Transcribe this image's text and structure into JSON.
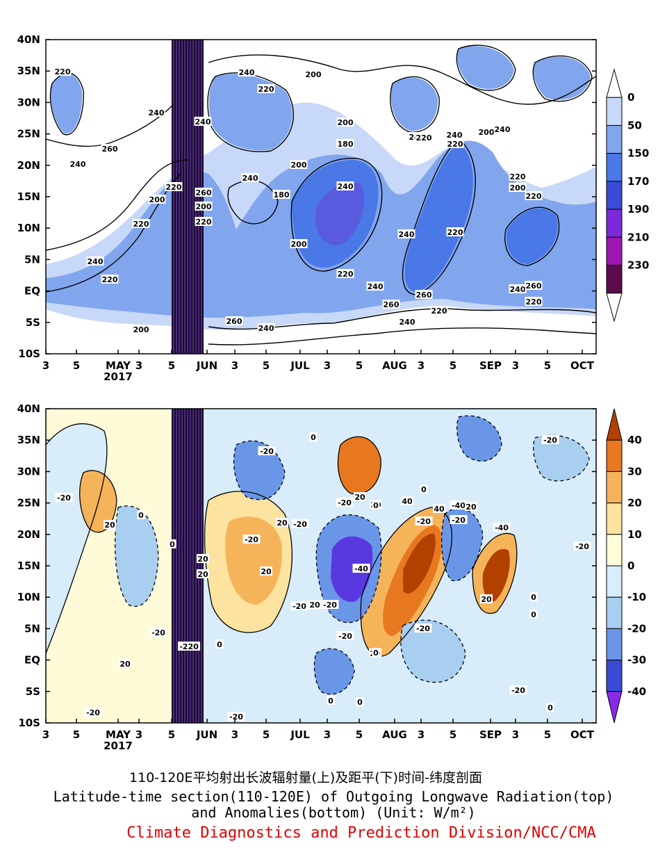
{
  "chart_data": [
    {
      "type": "heatmap",
      "title": "Outgoing Longwave Radiation (top)",
      "y_ticks": [
        "40N",
        "35N",
        "30N",
        "25N",
        "20N",
        "15N",
        "10N",
        "5N",
        "EQ",
        "5S",
        "10S"
      ],
      "x_ticks": [
        "3",
        "5",
        "MAY",
        "3",
        "5",
        "JUN",
        "3",
        "5",
        "JUL",
        "3",
        "5",
        "AUG",
        "3",
        "5",
        "SEP",
        "3",
        "5",
        "OCT"
      ],
      "year_label": "2017",
      "colorbar": {
        "levels": [
          "0",
          "50",
          "150",
          "170",
          "190",
          "210",
          "230"
        ],
        "colors": [
          "#ffffff",
          "#c8d8f8",
          "#82a6ee",
          "#4a78e6",
          "#3a4cd6",
          "#7a2ad6",
          "#9c18b0",
          "#5a0c4a",
          "#ffffff"
        ]
      },
      "contour_labels": [
        "220",
        "240",
        "260",
        "240",
        "220",
        "200",
        "220",
        "240",
        "220",
        "200",
        "240",
        "220",
        "200",
        "240",
        "260",
        "200",
        "220",
        "240",
        "200",
        "180",
        "200",
        "240",
        "220",
        "240",
        "260",
        "200",
        "180",
        "220",
        "240",
        "220",
        "240",
        "220",
        "200",
        "240",
        "220",
        "200",
        "220",
        "240",
        "260",
        "220",
        "240",
        "260",
        "220",
        "240",
        "260",
        "240"
      ]
    },
    {
      "type": "heatmap",
      "title": "Anomalies (bottom)",
      "y_ticks": [
        "40N",
        "35N",
        "30N",
        "25N",
        "20N",
        "15N",
        "10N",
        "5N",
        "EQ",
        "5S",
        "10S"
      ],
      "x_ticks": [
        "3",
        "5",
        "MAY",
        "3",
        "5",
        "JUN",
        "3",
        "5",
        "JUL",
        "3",
        "5",
        "AUG",
        "3",
        "5",
        "SEP",
        "3",
        "5",
        "OCT"
      ],
      "year_label": "2017",
      "colorbar": {
        "levels": [
          "40",
          "30",
          "20",
          "10",
          "0",
          "-10",
          "-20",
          "-30",
          "-40"
        ],
        "colors": [
          "#b24000",
          "#e87820",
          "#f6b45a",
          "#fde3a0",
          "#fffbd8",
          "#d8ecfa",
          "#a8cef0",
          "#6a96e8",
          "#3a4cd6",
          "#8a2ae6"
        ]
      },
      "contour_labels": [
        "-20",
        "0",
        "-20",
        "-20",
        "20",
        "-20",
        "0",
        "20",
        "20",
        "-20",
        "20",
        "-20",
        "-20",
        "-20",
        "20",
        "0",
        "20",
        "-40",
        "-20",
        "20",
        "0",
        "-20",
        "-40",
        "-20",
        "40",
        "20",
        "-40",
        "20",
        "0",
        "20",
        "0",
        "40",
        "0",
        "-20",
        "-20",
        "0",
        "-20",
        "0",
        "-20",
        "0",
        "-220",
        "0",
        "20",
        "0",
        "-20",
        "-20",
        "0",
        "20",
        "0"
      ]
    }
  ],
  "caption": {
    "chinese": "110-120E平均射出长波辐射量(上)及距平(下)时间-纬度剖面",
    "english_line1": "Latitude-time section(110-120E) of Outgoing Longwave Radiation(top)",
    "english_line2": "and Anomalies(bottom) (Unit: W/m²)",
    "credit": "Climate Diagnostics and Prediction Division/NCC/CMA"
  }
}
